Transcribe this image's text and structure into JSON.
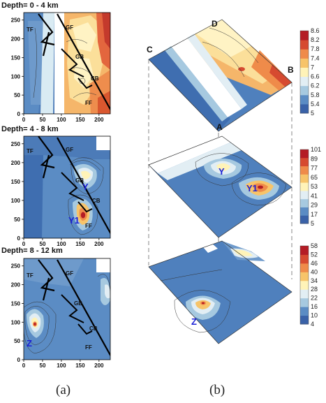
{
  "colors": {
    "scale": [
      "#3a62a8",
      "#5b8cc4",
      "#a6c9e0",
      "#e2eef4",
      "#fff3b8",
      "#f7c46a",
      "#ef8b4a",
      "#d64a30",
      "#b41c25"
    ],
    "fault_line": "#000000",
    "anomaly_label": "#1a1fd6"
  },
  "chart_data": [
    {
      "type": "heatmap",
      "panel": "a",
      "title": "Depth= 0 - 4 km",
      "xlim": [
        0,
        230
      ],
      "ylim": [
        0,
        270
      ],
      "xticks": [
        0,
        50,
        100,
        150,
        200
      ],
      "yticks": [
        0,
        50,
        100,
        150,
        200,
        250
      ],
      "fault_labels": [
        "TF",
        "GF",
        "GB",
        "CB",
        "FF"
      ],
      "anomaly_labels": []
    },
    {
      "type": "heatmap",
      "panel": "a",
      "title": "Depth= 4 - 8 km",
      "xlim": [
        0,
        230
      ],
      "ylim": [
        0,
        270
      ],
      "xticks": [
        0,
        50,
        100,
        150,
        200
      ],
      "yticks": [
        0,
        50,
        100,
        150,
        200,
        250
      ],
      "fault_labels": [
        "TF",
        "GF",
        "GB",
        "CB",
        "FF"
      ],
      "anomaly_labels": [
        "Y",
        "Y1"
      ]
    },
    {
      "type": "heatmap",
      "panel": "a",
      "title": "Depth= 8 - 12 km",
      "xlim": [
        0,
        230
      ],
      "ylim": [
        0,
        270
      ],
      "xticks": [
        0,
        50,
        100,
        150,
        200
      ],
      "yticks": [
        0,
        50,
        100,
        150,
        200,
        250
      ],
      "fault_labels": [
        "TF",
        "GF",
        "GB",
        "CB",
        "FF"
      ],
      "anomaly_labels": [
        "Z"
      ]
    },
    {
      "type": "heatmap",
      "panel": "b",
      "layer": "0 - 4 km",
      "corner_labels": [
        "D",
        "C",
        "B"
      ],
      "colorbar_ticks": [
        8.6,
        8.2,
        7.8,
        7.4,
        7,
        6.6,
        6.2,
        5.8,
        5.4,
        5
      ]
    },
    {
      "type": "heatmap",
      "panel": "b",
      "layer": "4 - 8 km",
      "corner_labels": [
        "A"
      ],
      "anomaly_labels": [
        "Y",
        "Y1"
      ],
      "colorbar_ticks": [
        101,
        89,
        77,
        65,
        53,
        41,
        29,
        17,
        5
      ]
    },
    {
      "type": "heatmap",
      "panel": "b",
      "layer": "8 - 12 km",
      "anomaly_labels": [
        "Z"
      ],
      "colorbar_ticks": [
        58,
        52,
        46,
        40,
        34,
        28,
        22,
        16,
        10,
        4
      ]
    }
  ],
  "captions": {
    "a": "(a)",
    "b": "(b)"
  }
}
